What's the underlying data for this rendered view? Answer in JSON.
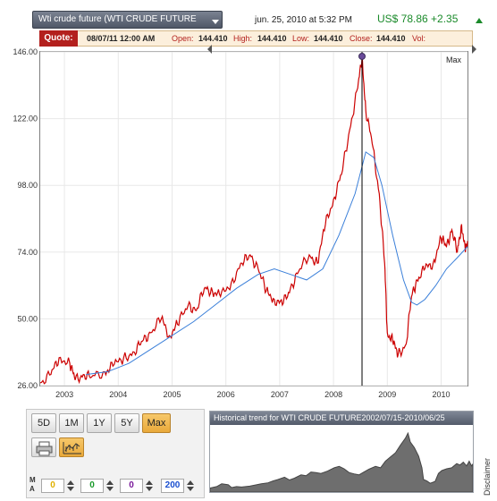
{
  "header": {
    "symbol_select": "Wti crude future (WTI CRUDE FUTURE",
    "datetime": "jun. 25, 2010 at 5:32 PM",
    "last_price": "US$ 78.86 +2.35",
    "up_color": "#1a8a2a"
  },
  "quote": {
    "label": "Quote:",
    "date": "08/07/11 12:00 AM",
    "open_label": "Open:",
    "open": "144.410",
    "high_label": "High:",
    "high": "144.410",
    "low_label": "Low:",
    "low": "144.410",
    "close_label": "Close:",
    "close": "144.410",
    "vol_label": "Vol:",
    "accent_color": "#b3201d"
  },
  "range_label": "Max",
  "chart_data": {
    "type": "line",
    "ylim": [
      26,
      146
    ],
    "y_ticks": [
      "146.00",
      "122.00",
      "98.00",
      "74.00",
      "50.00",
      "26.00"
    ],
    "x_ticks": [
      "2003",
      "2004",
      "2005",
      "2006",
      "2007",
      "2008",
      "2009",
      "2010"
    ],
    "x_range": [
      2002.55,
      2010.49
    ],
    "series": [
      {
        "color": "#cc0000",
        "x": [
          2002.55,
          2002.75,
          2002.9,
          2003.1,
          2003.2,
          2003.35,
          2003.5,
          2003.75,
          2003.9,
          2004.1,
          2004.3,
          2004.45,
          2004.6,
          2004.8,
          2004.95,
          2005.1,
          2005.3,
          2005.45,
          2005.6,
          2005.75,
          2005.9,
          2006.1,
          2006.3,
          2006.45,
          2006.6,
          2006.75,
          2006.9,
          2007.05,
          2007.2,
          2007.35,
          2007.55,
          2007.7,
          2007.85,
          2008.0,
          2008.15,
          2008.3,
          2008.45,
          2008.53,
          2008.6,
          2008.72,
          2008.85,
          2008.95,
          2009.0,
          2009.1,
          2009.2,
          2009.35,
          2009.45,
          2009.55,
          2009.7,
          2009.85,
          2010.0,
          2010.1,
          2010.2,
          2010.3,
          2010.38,
          2010.45,
          2010.49
        ],
        "values": [
          27,
          30,
          36,
          34,
          28,
          30,
          29,
          31,
          33,
          36,
          38,
          42,
          45,
          50,
          44,
          48,
          55,
          53,
          61,
          60,
          58,
          63,
          70,
          73,
          68,
          60,
          57,
          55,
          61,
          67,
          73,
          70,
          84,
          93,
          102,
          118,
          133,
          144,
          125,
          113,
          95,
          70,
          45,
          42,
          37,
          41,
          58,
          64,
          68,
          70,
          79,
          76,
          82,
          74,
          84,
          74,
          78
        ]
      },
      {
        "color": "#3a7fd9",
        "x": [
          2003.4,
          2003.8,
          2004.2,
          2004.6,
          2005.0,
          2005.4,
          2005.8,
          2006.2,
          2006.6,
          2006.9,
          2007.2,
          2007.5,
          2007.8,
          2008.1,
          2008.4,
          2008.6,
          2008.75,
          2008.9,
          2009.1,
          2009.3,
          2009.45,
          2009.55,
          2009.7,
          2009.9,
          2010.1,
          2010.3,
          2010.49
        ],
        "values": [
          30,
          31,
          34,
          39,
          44,
          49,
          55,
          61,
          66,
          68,
          66,
          64,
          68,
          80,
          95,
          110,
          108,
          98,
          80,
          64,
          56,
          55,
          57,
          62,
          68,
          72,
          76
        ]
      }
    ],
    "marker": {
      "x": 2008.53,
      "y": 144.41
    }
  },
  "controls": {
    "ranges": [
      {
        "label": "5D",
        "active": false
      },
      {
        "label": "1M",
        "active": false
      },
      {
        "label": "1Y",
        "active": false
      },
      {
        "label": "5Y",
        "active": false
      },
      {
        "label": "Max",
        "active": true
      }
    ],
    "print_icon": "printer-icon",
    "indicator_icon": "moving-average-chart-icon",
    "ma_letters": [
      "M",
      "A"
    ],
    "ma_values": [
      {
        "value": "0",
        "color": "#e0b000"
      },
      {
        "value": "0",
        "color": "#1a9a2a"
      },
      {
        "value": "0",
        "color": "#7a1a9a"
      },
      {
        "value": "200",
        "color": "#1a4fd0"
      }
    ]
  },
  "navigator": {
    "title": "Historical trend for WTI CRUDE FUTURE2002/07/15-2010/06/25",
    "disclaimer": "Disclaimer"
  }
}
